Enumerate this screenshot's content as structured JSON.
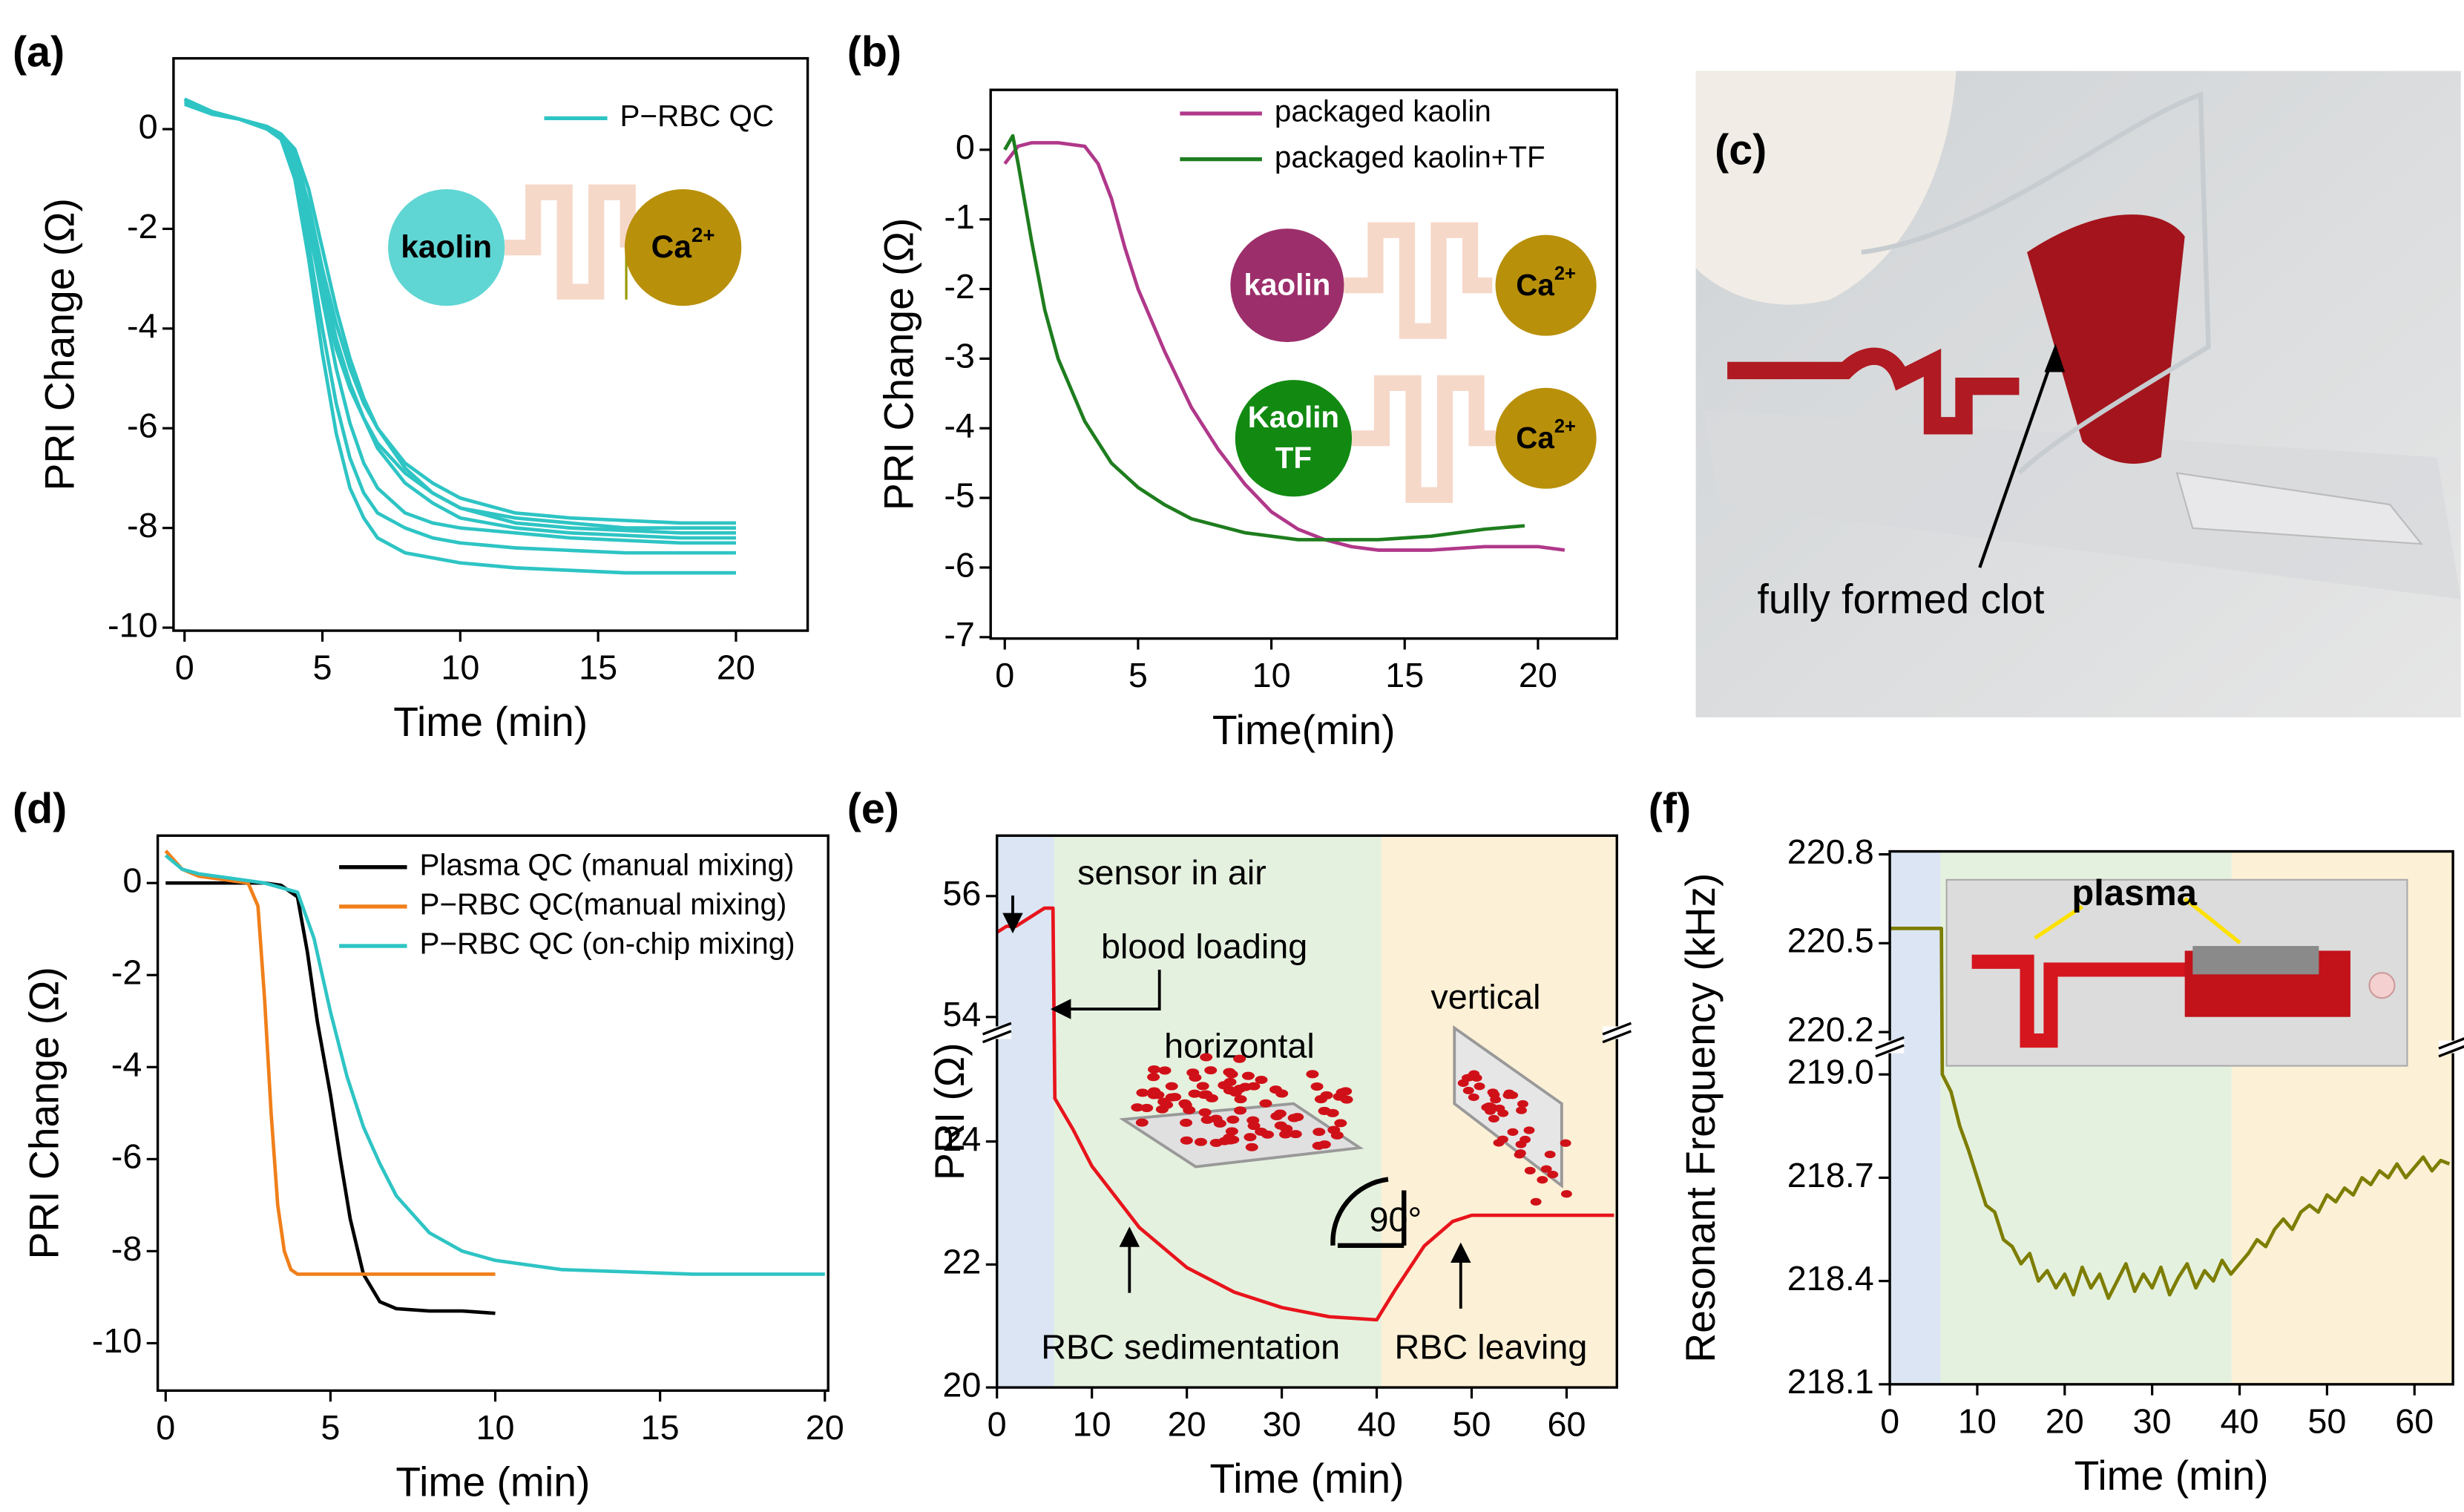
{
  "chart_data": [
    {
      "type": "line",
      "panel_label": "(a)",
      "xlabel": "Time (min)",
      "ylabel": "PRI Change (Ω)",
      "xlim": [
        -0.4,
        22.6
      ],
      "ylim": [
        -10.06,
        1.42
      ],
      "xticks": [
        0,
        5,
        10,
        15,
        20
      ],
      "yticks": [
        0,
        -2,
        -4,
        -6,
        -8,
        -10
      ],
      "legend": "upper right",
      "inset": {
        "left": "kaolin",
        "right": "Ca",
        "right_sup": "2+"
      },
      "x": [
        0,
        1,
        2,
        3,
        3.5,
        4,
        4.5,
        5,
        5.5,
        6,
        6.5,
        7,
        8,
        9,
        10,
        12,
        14,
        16,
        18,
        20
      ],
      "series": [
        {
          "name": "P−RBC QC",
          "color": "#2ec4c4",
          "values": [
            0.6,
            0.3,
            0.2,
            0.05,
            -0.1,
            -0.5,
            -1.5,
            -2.8,
            -3.9,
            -4.8,
            -5.5,
            -6.0,
            -6.7,
            -7.1,
            -7.4,
            -7.7,
            -7.8,
            -7.85,
            -7.9,
            -7.9
          ]
        },
        {
          "color": "#2ec4c4",
          "values": [
            0.5,
            0.3,
            0.2,
            0.0,
            -0.2,
            -0.8,
            -2.0,
            -3.3,
            -4.4,
            -5.2,
            -5.8,
            -6.3,
            -6.9,
            -7.3,
            -7.6,
            -7.8,
            -7.9,
            -8.0,
            -8.0,
            -8.0
          ]
        },
        {
          "color": "#2ec4c4",
          "values": [
            0.6,
            0.35,
            0.2,
            0.0,
            -0.15,
            -0.6,
            -1.7,
            -3.0,
            -4.2,
            -5.1,
            -5.8,
            -6.4,
            -7.1,
            -7.5,
            -7.8,
            -8.0,
            -8.1,
            -8.15,
            -8.2,
            -8.2
          ]
        },
        {
          "color": "#2ec4c4",
          "values": [
            0.55,
            0.3,
            0.2,
            0.05,
            -0.1,
            -0.4,
            -1.2,
            -2.4,
            -3.6,
            -4.6,
            -5.4,
            -6.0,
            -6.8,
            -7.3,
            -7.6,
            -7.9,
            -8.0,
            -8.05,
            -8.1,
            -8.1
          ]
        },
        {
          "color": "#2ec4c4",
          "values": [
            0.6,
            0.3,
            0.2,
            0.0,
            -0.2,
            -0.7,
            -1.9,
            -3.4,
            -4.8,
            -5.9,
            -6.7,
            -7.2,
            -7.7,
            -7.9,
            -8.0,
            -8.1,
            -8.2,
            -8.25,
            -8.3,
            -8.3
          ]
        },
        {
          "color": "#2ec4c4",
          "values": [
            0.6,
            0.35,
            0.2,
            0.0,
            -0.2,
            -0.9,
            -2.3,
            -4.0,
            -5.5,
            -6.6,
            -7.3,
            -7.7,
            -8.0,
            -8.2,
            -8.3,
            -8.4,
            -8.45,
            -8.5,
            -8.5,
            -8.5
          ]
        },
        {
          "color": "#2ec4c4",
          "values": [
            0.6,
            0.35,
            0.2,
            0.0,
            -0.2,
            -1.0,
            -2.6,
            -4.5,
            -6.1,
            -7.2,
            -7.8,
            -8.2,
            -8.5,
            -8.6,
            -8.7,
            -8.8,
            -8.85,
            -8.9,
            -8.9,
            -8.9
          ]
        }
      ]
    },
    {
      "type": "line",
      "panel_label": "(b)",
      "xlabel": "Time(min)",
      "ylabel": "PRI Change (Ω)",
      "xlim": [
        -0.53,
        22.96
      ],
      "ylim": [
        -7.02,
        0.86
      ],
      "xticks": [
        0,
        5,
        10,
        15,
        20
      ],
      "yticks": [
        0,
        -1,
        -2,
        -3,
        -4,
        -5,
        -6,
        -7
      ],
      "legend": "upper right",
      "inset": [
        {
          "left": "kaolin",
          "right": "Ca",
          "right_sup": "2+"
        },
        {
          "left_lines": [
            "Kaolin",
            "TF"
          ],
          "right": "Ca",
          "right_sup": "2+"
        }
      ],
      "series": [
        {
          "name": "packaged kaolin",
          "color": "#b0388a",
          "x": [
            0,
            0.5,
            1,
            2,
            3,
            3.5,
            4,
            4.5,
            5,
            6,
            7,
            8,
            9,
            10,
            11,
            12,
            13,
            14,
            16,
            18,
            20,
            21
          ],
          "values": [
            -0.2,
            0.05,
            0.1,
            0.1,
            0.05,
            -0.2,
            -0.7,
            -1.4,
            -2.0,
            -2.9,
            -3.7,
            -4.3,
            -4.8,
            -5.2,
            -5.45,
            -5.6,
            -5.7,
            -5.75,
            -5.75,
            -5.7,
            -5.7,
            -5.75
          ]
        },
        {
          "name": "packaged kaolin+TF",
          "color": "#1e7d1e",
          "x": [
            0,
            0.3,
            0.5,
            1,
            1.5,
            2,
            3,
            4,
            5,
            6,
            7,
            8,
            9,
            10,
            11,
            12,
            14,
            16,
            18,
            19.5
          ],
          "values": [
            0,
            0.2,
            -0.2,
            -1.3,
            -2.3,
            -3.0,
            -3.9,
            -4.5,
            -4.85,
            -5.1,
            -5.3,
            -5.4,
            -5.5,
            -5.55,
            -5.6,
            -5.6,
            -5.6,
            -5.55,
            -5.45,
            -5.4
          ]
        }
      ]
    },
    {
      "type": "line",
      "panel_label": "(d)",
      "xlabel": "Time (min)",
      "ylabel": "PRI Change (Ω)",
      "xlim": [
        -0.24,
        20.1
      ],
      "ylim": [
        -11.03,
        1.03
      ],
      "xticks": [
        0,
        5,
        10,
        15,
        20
      ],
      "yticks": [
        0,
        -2,
        -4,
        -6,
        -8,
        -10
      ],
      "legend": "upper right",
      "series": [
        {
          "name": "Plasma QC (manual mixing)",
          "color": "#000000",
          "x": [
            0,
            1,
            2,
            3,
            3.5,
            4,
            4.3,
            4.6,
            5,
            5.3,
            5.6,
            6,
            6.5,
            7,
            8,
            9,
            10
          ],
          "values": [
            0,
            0,
            0,
            0,
            -0.05,
            -0.3,
            -1.5,
            -3.0,
            -4.6,
            -6.0,
            -7.3,
            -8.5,
            -9.1,
            -9.25,
            -9.3,
            -9.3,
            -9.35
          ]
        },
        {
          "name": "P−RBC QC(manual mixing)",
          "color": "#f07f1a",
          "x": [
            0,
            0.5,
            1,
            2,
            2.5,
            2.8,
            3,
            3.2,
            3.4,
            3.6,
            3.8,
            4,
            5,
            6,
            8,
            10
          ],
          "values": [
            0.7,
            0.3,
            0.15,
            0.05,
            0,
            -0.5,
            -2.5,
            -5.0,
            -7.0,
            -8.0,
            -8.4,
            -8.5,
            -8.5,
            -8.5,
            -8.5,
            -8.5
          ]
        },
        {
          "name": "P−RBC QC (on-chip mixing)",
          "color": "#2ec4c4",
          "x": [
            0,
            0.5,
            1,
            2,
            3,
            4,
            4.5,
            5,
            5.5,
            6,
            6.5,
            7,
            8,
            9,
            10,
            12,
            14,
            16,
            18,
            20
          ],
          "values": [
            0.6,
            0.3,
            0.2,
            0.1,
            0.0,
            -0.2,
            -1.2,
            -2.8,
            -4.2,
            -5.3,
            -6.1,
            -6.8,
            -7.6,
            -8.0,
            -8.2,
            -8.4,
            -8.45,
            -8.5,
            -8.5,
            -8.5
          ]
        }
      ]
    },
    {
      "type": "line",
      "panel_label": "(e)",
      "xlabel": "Time (min)",
      "ylabel": "PRI (Ω)",
      "xlim": [
        0,
        65.3
      ],
      "xticks": [
        0,
        10,
        20,
        30,
        40,
        50,
        60
      ],
      "y_segments": [
        {
          "ylim": [
            20,
            25.77
          ],
          "yticks": [
            20,
            22,
            24
          ]
        },
        {
          "ylim": [
            53.74,
            57
          ],
          "yticks": [
            54,
            56
          ]
        }
      ],
      "regions": [
        {
          "x": [
            0,
            6
          ],
          "color": "#dbe5f3"
        },
        {
          "x": [
            6,
            40.5
          ],
          "color": "#e5f1df"
        },
        {
          "x": [
            40.5,
            65.3
          ],
          "color": "#fcf0d6"
        }
      ],
      "annotations": [
        "sensor in air",
        "blood loading",
        "horizontal",
        "vertical",
        "90°",
        "RBC sedimentation",
        "RBC leaving"
      ],
      "series": [
        {
          "color": "#e8141c",
          "x": [
            0,
            1,
            2,
            3,
            4,
            5,
            5.9,
            6,
            6.1,
            8,
            10,
            15,
            20,
            25,
            30,
            35,
            40,
            42,
            45,
            48,
            50,
            55,
            60,
            65
          ],
          "values": [
            55.4,
            55.5,
            55.5,
            55.6,
            55.7,
            55.8,
            55.8,
            54.2,
            24.7,
            24.2,
            23.6,
            22.6,
            21.95,
            21.55,
            21.3,
            21.15,
            21.1,
            21.6,
            22.3,
            22.7,
            22.8,
            22.8,
            22.8,
            22.8
          ]
        }
      ]
    },
    {
      "type": "line",
      "panel_label": "(f)",
      "xlabel": "Time (min)",
      "ylabel": "Resonant Frequency (kHz)",
      "xlim": [
        0,
        64.4
      ],
      "xticks": [
        0,
        10,
        20,
        30,
        40,
        50,
        60
      ],
      "y_segments": [
        {
          "ylim": [
            218.1,
            219.08
          ],
          "yticks": [
            218.1,
            218.4,
            218.7,
            {
              "value": 219,
              "label": "219.0"
            }
          ]
        },
        {
          "ylim": [
            220.15,
            220.81
          ],
          "yticks": [
            220.2,
            220.5,
            220.8
          ]
        }
      ],
      "regions": [
        {
          "x": [
            0,
            5.8
          ],
          "color": "#dbe5f3"
        },
        {
          "x": [
            5.8,
            39.1
          ],
          "color": "#e5f1df"
        },
        {
          "x": [
            39.1,
            64.4
          ],
          "color": "#fcf0d6"
        }
      ],
      "inset_label": "plasma",
      "series": [
        {
          "color": "#7d7d00",
          "x": [
            0,
            1,
            2,
            3,
            4,
            5,
            5.9,
            6,
            7,
            8,
            9,
            10,
            11,
            12,
            13,
            14,
            15,
            16,
            17,
            18,
            19,
            20,
            21,
            22,
            23,
            24,
            25,
            26,
            27,
            28,
            29,
            30,
            31,
            32,
            33,
            34,
            35,
            36,
            37,
            38,
            39,
            40,
            41,
            42,
            43,
            44,
            45,
            46,
            47,
            48,
            49,
            50,
            51,
            52,
            53,
            54,
            55,
            56,
            57,
            58,
            59,
            60,
            61,
            62,
            63,
            64
          ],
          "values": [
            220.55,
            220.55,
            220.55,
            220.55,
            220.55,
            220.55,
            220.55,
            219.0,
            218.95,
            218.85,
            218.78,
            218.7,
            218.62,
            218.6,
            218.52,
            218.5,
            218.45,
            218.48,
            218.4,
            218.43,
            218.38,
            218.42,
            218.36,
            218.44,
            218.38,
            218.42,
            218.35,
            218.4,
            218.45,
            218.37,
            218.42,
            218.38,
            218.44,
            218.36,
            218.41,
            218.45,
            218.38,
            218.43,
            218.4,
            218.46,
            218.42,
            218.45,
            218.48,
            218.52,
            218.5,
            218.55,
            218.58,
            218.55,
            218.6,
            218.62,
            218.6,
            218.65,
            218.63,
            218.67,
            218.65,
            218.7,
            218.68,
            218.72,
            218.7,
            218.74,
            218.7,
            218.73,
            218.76,
            218.72,
            218.75,
            218.74
          ]
        }
      ]
    }
  ],
  "photo": {
    "label": "(c)",
    "annotation": "fully formed clot"
  }
}
